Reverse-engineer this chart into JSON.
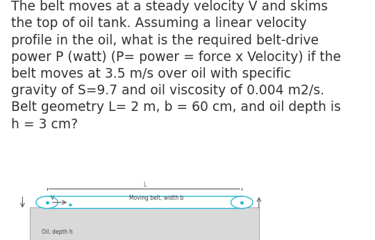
{
  "background_color": "#ffffff",
  "text_body": "The belt moves at a steady velocity V and skims\nthe top of oil tank. Assuming a linear velocity\nprofile in the oil, what is the required belt-drive\npower P (watt) (P= power = force x Velocity) if the\nbelt moves at 3.5 m/s over oil with specific\ngravity of S=9.7 and oil viscosity of 0.004 m2/s.\nBelt geometry L= 2 m, b = 60 cm, and oil depth is\nh = 3 cm?",
  "text_fontsize": 13.5,
  "text_color": "#333333",
  "diagram_belt_color": "#29b6d0",
  "diagram_belt_label": "Moving belt, width b",
  "diagram_oil_label": "Oil, depth h",
  "diagram_L_label": "L",
  "diagram_V_label": "V",
  "diagram_arrow_color": "#555555",
  "diagram_tank_color": "#d9d9d9",
  "diagram_tank_edge": "#aaaaaa"
}
